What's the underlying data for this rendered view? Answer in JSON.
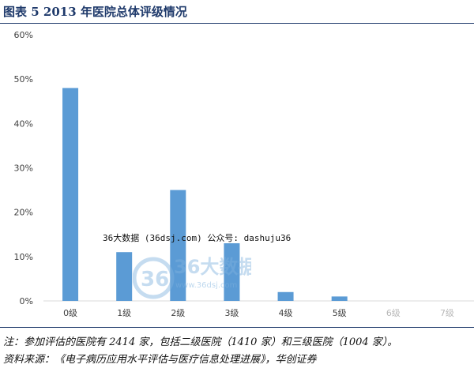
{
  "title": "图表 5   2013 年医院总体评级情况",
  "chart_data": {
    "type": "bar",
    "categories": [
      "0级",
      "1级",
      "2级",
      "3级",
      "4级",
      "5级",
      "6级",
      "7级"
    ],
    "values": [
      48,
      11,
      25,
      13,
      2,
      1,
      0,
      0
    ],
    "faded_categories": [
      "6级",
      "7级"
    ],
    "y_ticks": [
      "0%",
      "10%",
      "20%",
      "30%",
      "40%",
      "50%",
      "60%"
    ],
    "ylim": [
      0,
      60
    ],
    "bar_color": "#5b9bd5",
    "grid": false
  },
  "watermark": {
    "text": "36大数据 (36dsj.com) 公众号: dashuju36",
    "logo_text": "36大数据",
    "logo_sub": "www.36dsj.com"
  },
  "notes": {
    "note": "注：参加评估的医院有 2414 家，包括二级医院（1410 家）和三级医院（1004 家）。",
    "source": "资料来源：《电子病历应用水平评估与医疗信息处理进展》，华创证券"
  }
}
